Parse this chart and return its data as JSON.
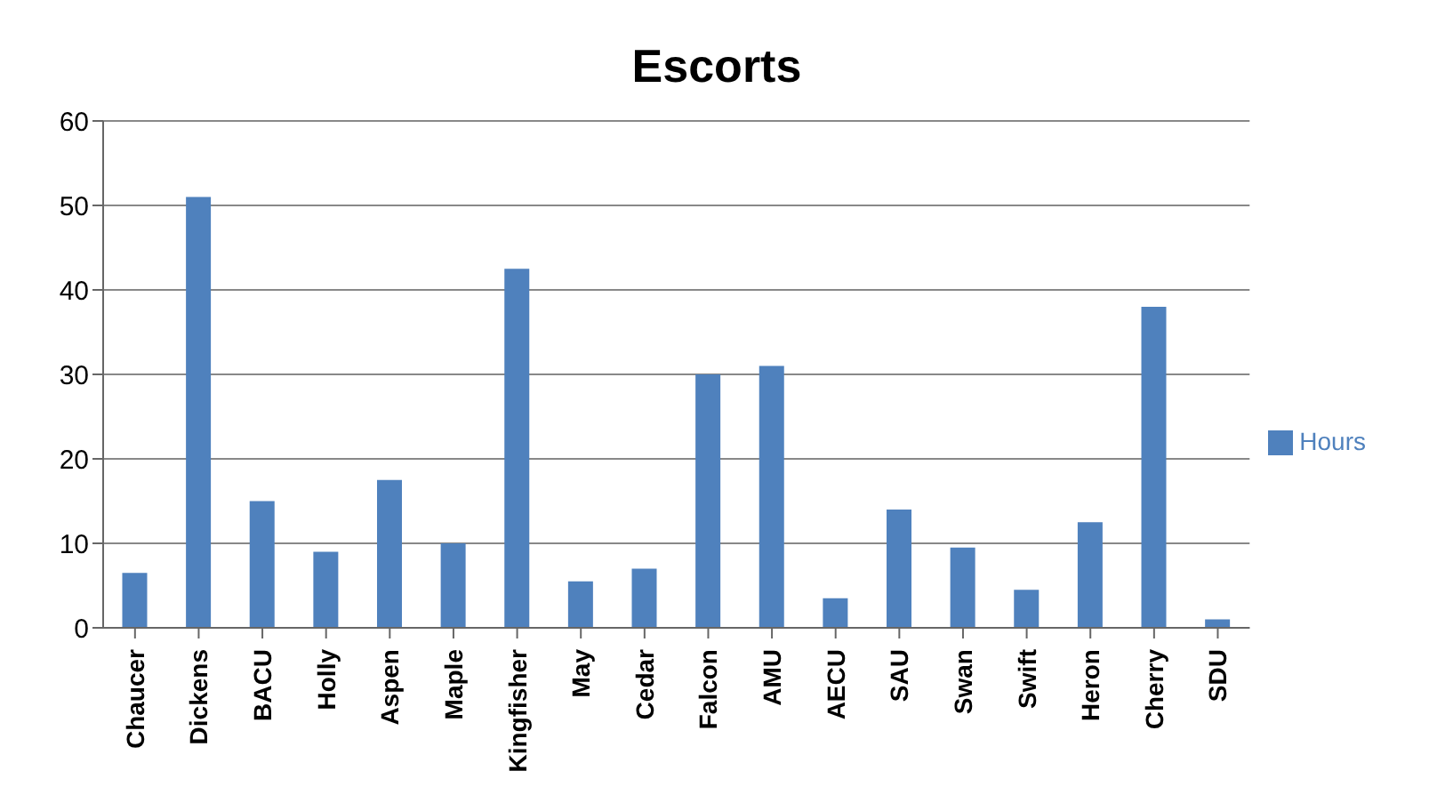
{
  "chart_data": {
    "type": "bar",
    "title": "Escorts",
    "categories": [
      "Chaucer",
      "Dickens",
      "BACU",
      "Holly",
      "Aspen",
      "Maple",
      "Kingfisher",
      "May",
      "Cedar",
      "Falcon",
      "AMU",
      "AECU",
      "SAU",
      "Swan",
      "Swift",
      "Heron",
      "Cherry",
      "SDU"
    ],
    "series": [
      {
        "name": "Hours",
        "color": "#4f81bd",
        "values": [
          6.5,
          51,
          15,
          9,
          17.5,
          10,
          42.5,
          5.5,
          7,
          30,
          31,
          3.5,
          14,
          9.5,
          4.5,
          12.5,
          38,
          1
        ]
      }
    ],
    "ylim": [
      0,
      60
    ],
    "yticks": [
      0,
      10,
      20,
      30,
      40,
      50,
      60
    ],
    "grid": "y",
    "legend": "right"
  }
}
